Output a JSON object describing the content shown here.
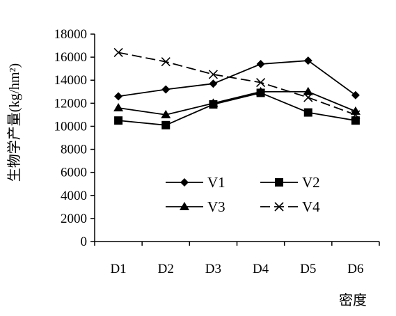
{
  "chart_data": {
    "type": "line",
    "categories": [
      "D1",
      "D2",
      "D3",
      "D4",
      "D5",
      "D6"
    ],
    "xlabel": "密度",
    "ylabel": "生物学产量(kg/hm²)",
    "ylim": [
      0,
      18000
    ],
    "yticks": [
      "0",
      "2000",
      "4000",
      "6000",
      "8000",
      "10000",
      "12000",
      "14000",
      "16000",
      "18000"
    ],
    "grid": false,
    "legend_position": "lower-center, inside plot",
    "series": [
      {
        "name": "V1",
        "marker": "diamond",
        "dash": "solid",
        "values": [
          12600,
          13200,
          13700,
          15400,
          15700,
          12700
        ]
      },
      {
        "name": "V2",
        "marker": "square",
        "dash": "solid",
        "values": [
          10500,
          10100,
          11900,
          12900,
          11200,
          10500
        ]
      },
      {
        "name": "V3",
        "marker": "triangle",
        "dash": "solid",
        "values": [
          11600,
          11000,
          12000,
          13000,
          13000,
          11300
        ]
      },
      {
        "name": "V4",
        "marker": "cross",
        "dash": "dashed",
        "values": [
          16400,
          15600,
          14500,
          13800,
          12500,
          11000
        ]
      }
    ]
  }
}
